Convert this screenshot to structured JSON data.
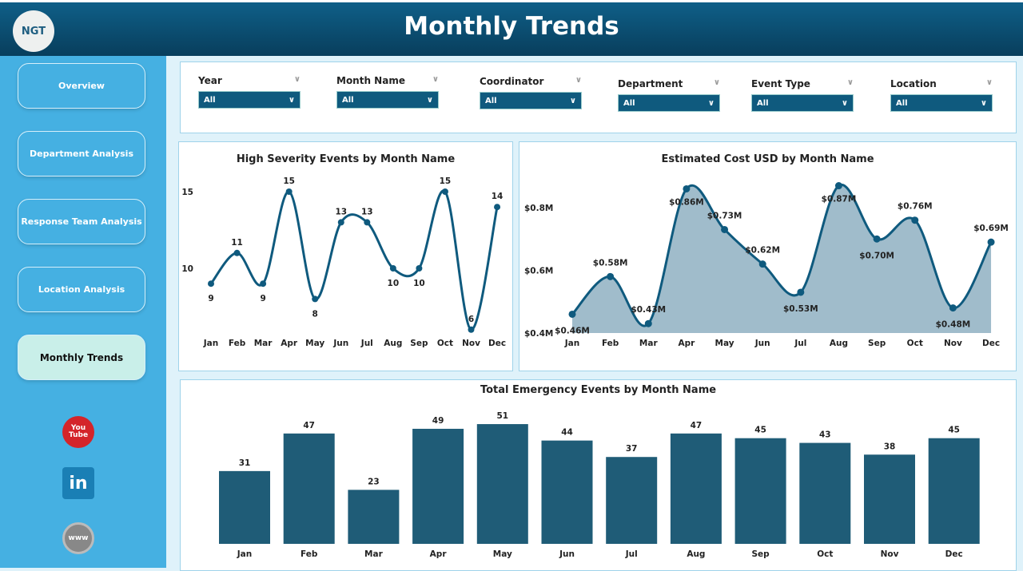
{
  "header": {
    "title": "Monthly Trends",
    "logo_text": "NGT"
  },
  "sidebar": {
    "items": [
      {
        "label": "Overview"
      },
      {
        "label": "Department Analysis"
      },
      {
        "label": "Response Team Analysis"
      },
      {
        "label": "Location Analysis"
      },
      {
        "label": "Monthly Trends",
        "active": true
      }
    ],
    "social": [
      "youtube-icon",
      "linkedin-icon",
      "globe-icon"
    ],
    "youtube_text": "You Tube",
    "linkedin_text": "in",
    "globe_text": "www"
  },
  "filters": [
    {
      "label": "Year",
      "value": "All"
    },
    {
      "label": "Month Name",
      "value": "All"
    },
    {
      "label": "Coordinator",
      "value": "All"
    },
    {
      "label": "Department",
      "value": "All"
    },
    {
      "label": "Event Type",
      "value": "All"
    },
    {
      "label": "Location",
      "value": "All"
    }
  ],
  "colors": {
    "line": "#0f5a7e",
    "bar": "#1f5c77",
    "area": "#a0bccb",
    "sidebar": "#45b0e2"
  },
  "chart_data": [
    {
      "type": "line",
      "title": "High Severity Events by Month Name",
      "categories": [
        "Jan",
        "Feb",
        "Mar",
        "Apr",
        "May",
        "Jun",
        "Jul",
        "Aug",
        "Sep",
        "Oct",
        "Nov",
        "Dec"
      ],
      "values": [
        9,
        11,
        9,
        15,
        8,
        13,
        13,
        10,
        10,
        15,
        6,
        14
      ],
      "yticks": [
        "10",
        "15"
      ],
      "labels": [
        "9",
        "11",
        "9",
        "15",
        "8",
        "13",
        "13",
        "10",
        "10",
        "15",
        "6",
        "14"
      ]
    },
    {
      "type": "area",
      "title": "Estimated Cost USD by Month Name",
      "categories": [
        "Jan",
        "Feb",
        "Mar",
        "Apr",
        "May",
        "Jun",
        "Jul",
        "Aug",
        "Sep",
        "Oct",
        "Nov",
        "Dec"
      ],
      "values": [
        0.46,
        0.58,
        0.43,
        0.86,
        0.73,
        0.62,
        0.53,
        0.87,
        0.7,
        0.76,
        0.48,
        0.69
      ],
      "labels": [
        "$0.46M",
        "$0.58M",
        "$0.43M",
        "$0.86M",
        "$0.73M",
        "$0.62M",
        "$0.53M",
        "$0.87M",
        "$0.70M",
        "$0.76M",
        "$0.48M",
        "$0.69M"
      ],
      "yticks": [
        "$0.4M",
        "$0.6M",
        "$0.8M"
      ],
      "unit": "USD millions"
    },
    {
      "type": "bar",
      "title": "Total Emergency Events by Month Name",
      "categories": [
        "Jan",
        "Feb",
        "Mar",
        "Apr",
        "May",
        "Jun",
        "Jul",
        "Aug",
        "Sep",
        "Oct",
        "Nov",
        "Dec"
      ],
      "values": [
        31,
        47,
        23,
        49,
        51,
        44,
        37,
        47,
        45,
        43,
        38,
        45
      ],
      "labels": [
        "31",
        "47",
        "23",
        "49",
        "51",
        "44",
        "37",
        "47",
        "45",
        "43",
        "38",
        "45"
      ]
    }
  ]
}
